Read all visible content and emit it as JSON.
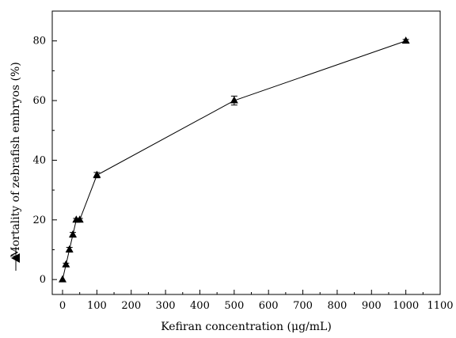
{
  "chart_data": {
    "type": "line",
    "xlabel": "Kefiran concentration (μg/mL)",
    "ylabel": "Mortality of zebrafish embryos (%)",
    "xlim": [
      -30,
      1100
    ],
    "ylim": [
      -5,
      90
    ],
    "xticks": [
      0,
      100,
      200,
      300,
      400,
      500,
      600,
      700,
      800,
      900,
      1000,
      1100
    ],
    "yticks": [
      0,
      20,
      40,
      60,
      80
    ],
    "grid": false,
    "marker": "triangle",
    "line_color": "#000000",
    "series": [
      {
        "x": [
          0,
          10,
          20,
          30,
          40,
          50,
          100,
          500,
          1000
        ],
        "y": [
          0,
          5,
          10,
          15,
          20,
          20,
          35,
          60,
          80
        ],
        "error": [
          0,
          0.5,
          0.8,
          0.8,
          0.5,
          0.5,
          0.9,
          1.5,
          0.5
        ]
      }
    ]
  }
}
